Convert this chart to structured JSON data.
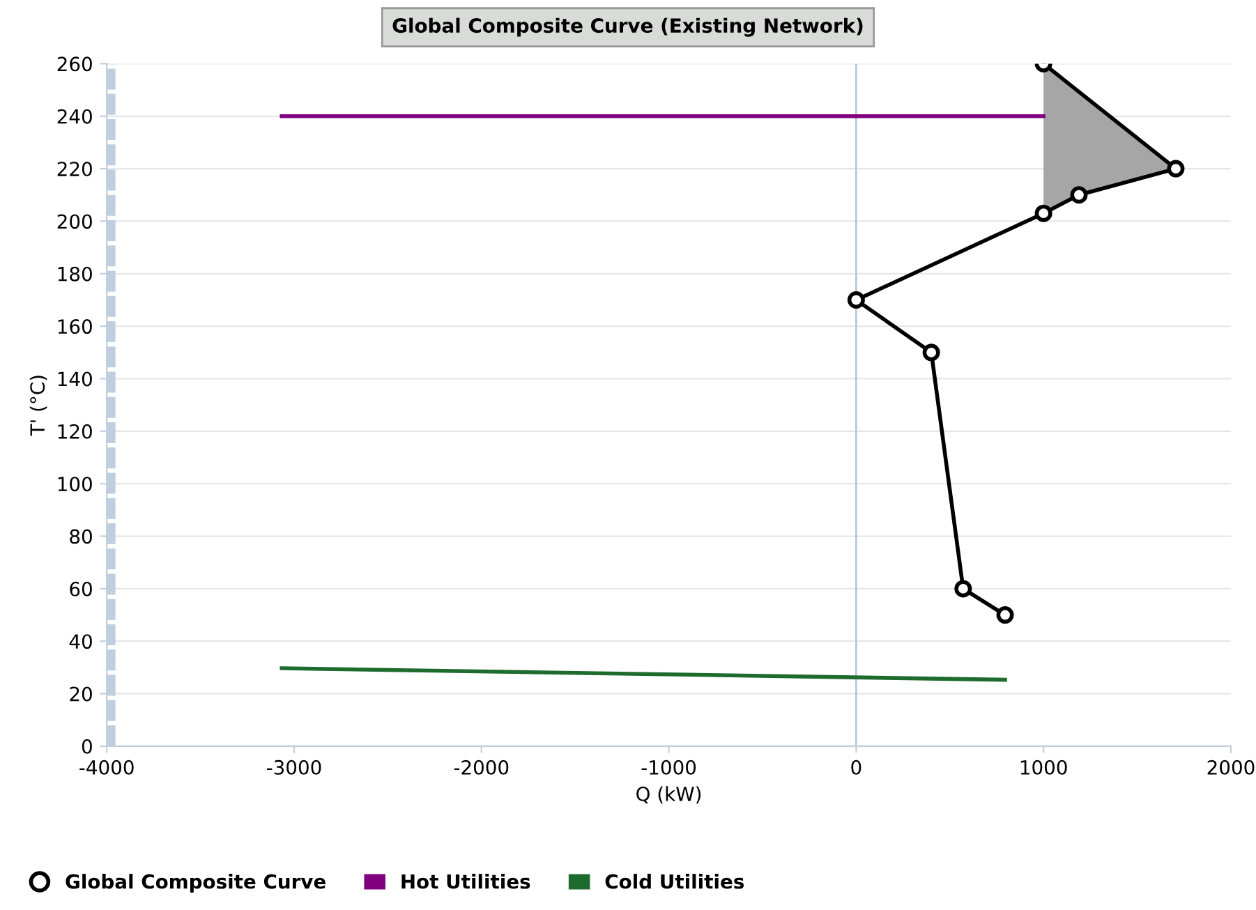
{
  "chart_data": {
    "type": "line",
    "title": "Global Composite Curve (Existing Network)",
    "xlabel": "Q (kW)",
    "ylabel": "T' (°C)",
    "xlim": [
      -4000,
      2000
    ],
    "xticks": [
      -4000,
      -3000,
      -2000,
      -1000,
      0,
      1000,
      2000
    ],
    "ylim": [
      0,
      260
    ],
    "yticks": [
      0,
      20,
      40,
      60,
      80,
      100,
      120,
      140,
      160,
      180,
      200,
      220,
      240,
      260
    ],
    "grid": "y",
    "legend": "bottom",
    "ref_lines": [
      {
        "axis": "x",
        "value": -4000,
        "color": "#c0cfdf",
        "line_style": "dashed"
      },
      {
        "axis": "x",
        "value": 0,
        "color": "#b8c8d8",
        "line_style": "solid"
      }
    ],
    "series": [
      {
        "type": "area",
        "color": "#a6a6a6",
        "x": [
          1000,
          1706,
          1189,
          1000
        ],
        "values": [
          260,
          220,
          210,
          203
        ]
      },
      {
        "name": "Global Composite Curve",
        "marker": "circle",
        "color": "#000000",
        "x": [
          1000,
          1706,
          1189,
          1000,
          0,
          401,
          571,
          795
        ],
        "values": [
          260,
          220,
          210,
          203,
          170,
          150,
          60,
          50
        ]
      },
      {
        "name": "Hot Utilities",
        "marker": "none",
        "color": "#800080",
        "x": [
          -3066,
          1000
        ],
        "values": [
          240,
          240
        ]
      },
      {
        "name": "Cold Utilities",
        "marker": "none",
        "color": "#1e6b2e",
        "x": [
          -3066,
          795
        ],
        "values": [
          29.7,
          25.3
        ]
      }
    ]
  }
}
